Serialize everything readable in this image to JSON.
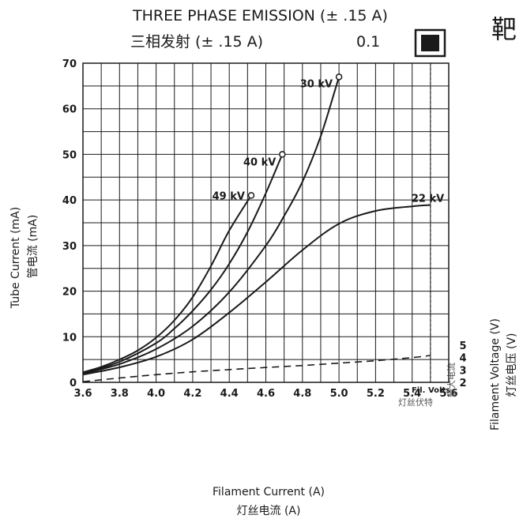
{
  "header": {
    "title_en": "THREE PHASE EMISSION (± .15 A)",
    "title_cn": "三相发射 (± .15 A)",
    "value": "0.1",
    "corner_char": "靶"
  },
  "chart_data": {
    "type": "line",
    "xlabel": "Filament Current (A)",
    "xlabel_cn": "灯丝电流 (A)",
    "ylabel": "Tube Current (mA)",
    "ylabel_cn": "管电流 (mA)",
    "y2label": "Filament Voltage (V)",
    "y2label_cn": "灯丝电压 (V)",
    "xlim": [
      3.6,
      5.6
    ],
    "ylim": [
      0,
      70
    ],
    "y2lim": [
      2,
      5
    ],
    "grid": true,
    "x_ticks": [
      "3.6",
      "3.8",
      "4.0",
      "4.2",
      "4.4",
      "4.6",
      "4.8",
      "5.0",
      "5.2",
      "5.4",
      "5.6"
    ],
    "y_ticks": [
      "0",
      "10",
      "20",
      "30",
      "40",
      "50",
      "60",
      "70"
    ],
    "y2_ticks": [
      "2",
      "3",
      "4",
      "5"
    ],
    "series": [
      {
        "name": "49 kV",
        "x": [
          3.6,
          3.7,
          3.8,
          3.9,
          4.0,
          4.1,
          4.2,
          4.3,
          4.4,
          4.52
        ],
        "y": [
          2.2,
          3.4,
          5.0,
          7.0,
          9.8,
          13.6,
          18.7,
          25.5,
          33.3,
          41.0
        ]
      },
      {
        "name": "40 kV",
        "x": [
          3.6,
          3.8,
          4.0,
          4.1,
          4.2,
          4.3,
          4.4,
          4.5,
          4.6,
          4.69
        ],
        "y": [
          2.0,
          4.5,
          8.6,
          11.8,
          15.7,
          20.3,
          26.0,
          33.0,
          41.5,
          50.0
        ]
      },
      {
        "name": "30 kV",
        "x": [
          3.6,
          3.8,
          4.0,
          4.2,
          4.4,
          4.6,
          4.7,
          4.8,
          4.9,
          5.0
        ],
        "y": [
          1.9,
          4.0,
          7.3,
          12.3,
          19.8,
          30.0,
          36.5,
          44.0,
          54.0,
          67.0
        ]
      },
      {
        "name": "22 kV",
        "x": [
          3.6,
          3.8,
          4.0,
          4.2,
          4.4,
          4.6,
          4.8,
          5.0,
          5.2,
          5.4,
          5.5
        ],
        "y": [
          1.7,
          3.3,
          5.6,
          9.4,
          15.3,
          22.0,
          29.0,
          34.8,
          37.6,
          38.6,
          38.9
        ]
      },
      {
        "name": "Fil. Volts",
        "axis": "y2",
        "x": [
          3.6,
          3.8,
          4.0,
          4.2,
          4.4,
          4.6,
          4.8,
          5.0,
          5.2,
          5.4,
          5.5
        ],
        "y": [
          2.05,
          2.35,
          2.62,
          2.85,
          3.03,
          3.2,
          3.36,
          3.55,
          3.75,
          4.0,
          4.17
        ]
      }
    ],
    "max_current_line": {
      "x": 5.5,
      "label_cn": "最大电流"
    },
    "annotations": {
      "fil_volts": "Fil. Volts",
      "fil_volts_cn": "灯丝伏特"
    }
  }
}
